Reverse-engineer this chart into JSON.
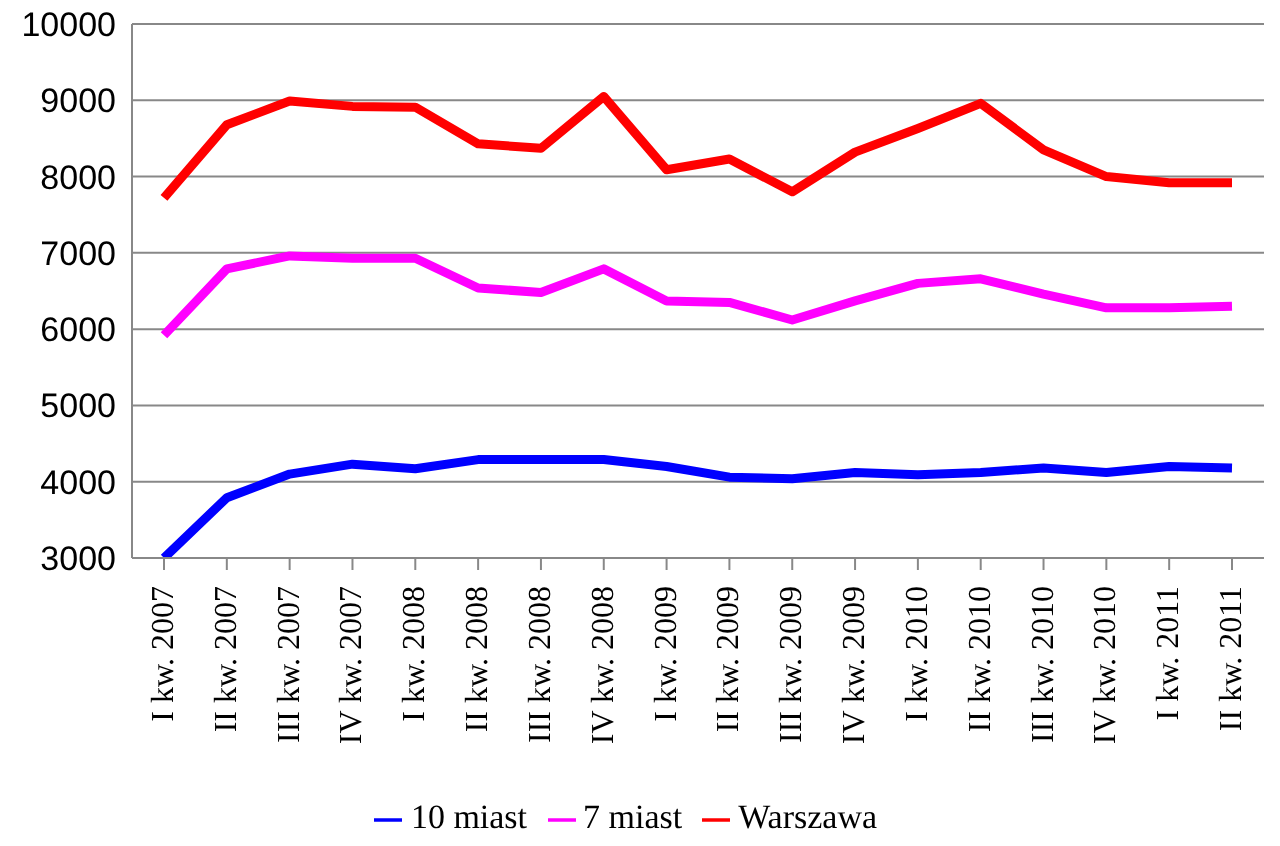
{
  "chart_data": {
    "type": "line",
    "categories": [
      "I kw. 2007",
      "II kw. 2007",
      "III kw. 2007",
      "IV kw. 2007",
      "I kw. 2008",
      "II kw. 2008",
      "III kw. 2008",
      "IV kw. 2008",
      "I kw. 2009",
      "II kw. 2009",
      "III kw. 2009",
      "IV kw. 2009",
      "I kw. 2010",
      "II kw. 2010",
      "III kw. 2010",
      "IV kw. 2010",
      "I kw. 2011",
      "II kw. 2011"
    ],
    "series": [
      {
        "name": "10 miast",
        "color": "#0000ff",
        "values": [
          3000,
          3790,
          4100,
          4230,
          4170,
          4290,
          4290,
          4290,
          4200,
          4060,
          4040,
          4120,
          4090,
          4120,
          4180,
          4120,
          4200,
          4180
        ]
      },
      {
        "name": "7 miast",
        "color": "#ff00ff",
        "values": [
          5920,
          6790,
          6960,
          6930,
          6930,
          6540,
          6480,
          6790,
          6370,
          6350,
          6120,
          6370,
          6600,
          6660,
          6460,
          6280,
          6280,
          6300
        ]
      },
      {
        "name": "Warszawa",
        "color": "#ff0000",
        "values": [
          7720,
          8680,
          8990,
          8920,
          8910,
          8430,
          8370,
          9050,
          8090,
          8230,
          7800,
          8320,
          8630,
          8960,
          8350,
          8000,
          7920,
          7920
        ]
      }
    ],
    "ylim": [
      3000,
      10000
    ],
    "yticks": [
      3000,
      4000,
      5000,
      6000,
      7000,
      8000,
      9000,
      10000
    ],
    "grid": "y",
    "legend": "bottom",
    "marker": "none",
    "line_style": "solid"
  }
}
